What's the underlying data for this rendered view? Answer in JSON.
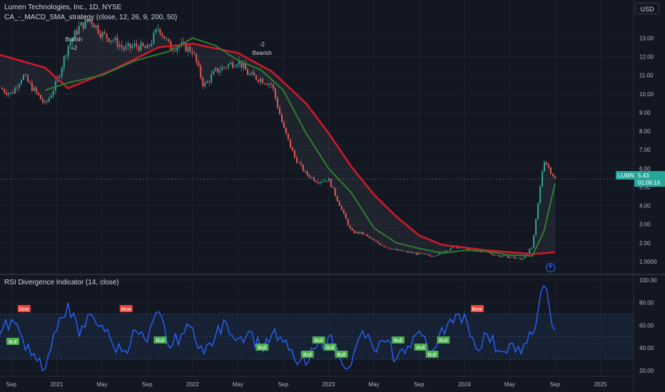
{
  "header": {
    "symbol_title": "Lumen Technologies, Inc., 1D, NYSE",
    "strategy_title": "CA_-_MACD_SMA_strategy (close, 12, 26, 9, 200, 50)",
    "currency": "USD"
  },
  "price_tag": {
    "ticker": "LUMN",
    "price": "5.43",
    "countdown": "01:06:16"
  },
  "rsi_panel": {
    "title": "RSI Divergence Indicator (14, close)"
  },
  "colors": {
    "background": "#131722",
    "grid": "#1e222d",
    "candle_up": "#26a69a",
    "candle_down": "#ef5350",
    "sma_long": "#d7182a",
    "sma_short": "#2e7d32",
    "rsi_line": "#2962ff",
    "rsi_band": "#1a2a44",
    "price_tag": "#26a69a",
    "bull_label": "#4caf50",
    "bear_label": "#f44336"
  },
  "chart_data": [
    {
      "type": "line",
      "title": "Lumen Technologies, Inc., 1D, NYSE",
      "x_ticks": [
        "Sep",
        "2021",
        "May",
        "Sep",
        "2022",
        "May",
        "Sep",
        "2023",
        "May",
        "Sep",
        "2024",
        "May",
        "Sep",
        "2025"
      ],
      "y_ticks": [
        "13.00",
        "12.00",
        "11.00",
        "10.00",
        "9.00",
        "8.00",
        "7.00",
        "6.00",
        "5.00",
        "4.00",
        "3.00",
        "2.00",
        "1.0000"
      ],
      "ylim": [
        0.5,
        14.2
      ],
      "scale": "linear",
      "series": [
        {
          "name": "",
          "role": "price",
          "x": [
            "2020-08",
            "2020-09",
            "2020-10",
            "2020-11",
            "2020-12",
            "2021-01",
            "2021-02",
            "2021-03",
            "2021-04",
            "2021-05",
            "2021-06",
            "2021-07",
            "2021-08",
            "2021-09",
            "2021-10",
            "2021-11",
            "2021-12",
            "2022-01",
            "2022-02",
            "2022-03",
            "2022-04",
            "2022-05",
            "2022-06",
            "2022-07",
            "2022-08",
            "2022-09",
            "2022-10",
            "2022-11",
            "2022-12",
            "2023-01",
            "2023-02",
            "2023-03",
            "2023-04",
            "2023-05",
            "2023-06",
            "2023-07",
            "2023-08",
            "2023-09",
            "2023-10",
            "2023-11",
            "2023-12",
            "2024-01",
            "2024-02",
            "2024-03",
            "2024-04",
            "2024-05",
            "2024-06",
            "2024-07",
            "2024-08",
            "2024-09"
          ],
          "values": [
            10.3,
            10.0,
            11.0,
            10.2,
            9.4,
            10.6,
            12.6,
            13.6,
            14.0,
            13.2,
            12.9,
            12.4,
            12.6,
            12.4,
            13.6,
            12.5,
            12.6,
            12.3,
            10.4,
            11.2,
            11.5,
            11.8,
            11.0,
            10.8,
            10.5,
            8.2,
            6.6,
            5.7,
            5.3,
            5.4,
            4.0,
            2.6,
            2.5,
            2.1,
            1.8,
            1.6,
            1.5,
            1.4,
            1.3,
            1.5,
            1.8,
            1.7,
            1.6,
            1.5,
            1.3,
            1.25,
            1.1,
            1.8,
            6.5,
            5.43
          ]
        },
        {
          "name": "",
          "role": "sma_long",
          "x": [
            "2020-08",
            "2020-12",
            "2021-02",
            "2021-06",
            "2021-10",
            "2022-01",
            "2022-05",
            "2022-08",
            "2022-11",
            "2023-01",
            "2023-03",
            "2023-05",
            "2023-07",
            "2023-09",
            "2023-11",
            "2024-01",
            "2024-03",
            "2024-05",
            "2024-07",
            "2024-09"
          ],
          "values": [
            12.1,
            11.4,
            10.3,
            11.3,
            12.5,
            12.7,
            12.2,
            11.2,
            9.5,
            7.9,
            6.1,
            4.6,
            3.4,
            2.4,
            1.9,
            1.75,
            1.6,
            1.5,
            1.4,
            1.5
          ]
        },
        {
          "name": "",
          "role": "sma_short",
          "x": [
            "2020-12",
            "2021-02",
            "2021-05",
            "2021-08",
            "2021-11",
            "2022-01",
            "2022-03",
            "2022-05",
            "2022-07",
            "2022-09",
            "2022-11",
            "2023-01",
            "2023-03",
            "2023-05",
            "2023-07",
            "2023-09",
            "2023-11",
            "2024-01",
            "2024-03",
            "2024-05",
            "2024-07",
            "2024-08",
            "2024-09"
          ],
          "values": [
            10.2,
            10.6,
            11.0,
            11.8,
            12.3,
            13.0,
            12.6,
            11.8,
            11.3,
            10.2,
            7.9,
            6.0,
            4.7,
            2.8,
            2.0,
            1.7,
            1.45,
            1.6,
            1.55,
            1.35,
            1.3,
            2.6,
            5.2
          ]
        }
      ],
      "annotations": [
        {
          "text": "Bullish",
          "x": "2021-01"
        },
        {
          "text": "+2",
          "x": "2021-01"
        },
        {
          "text": "-2",
          "x": "2022-06"
        },
        {
          "text": "Bearish",
          "x": "2022-06"
        }
      ]
    },
    {
      "type": "line",
      "title": "RSI Divergence Indicator (14, close)",
      "y_ticks": [
        "100.00",
        "80.00",
        "60.00",
        "40.00",
        "20.00"
      ],
      "ylim": [
        15,
        103
      ],
      "band": [
        30,
        70
      ],
      "series": [
        {
          "name": "",
          "x": [
            "2020-08",
            "2020-09",
            "2020-10",
            "2020-11",
            "2020-12",
            "2021-01",
            "2021-02",
            "2021-03",
            "2021-04",
            "2021-05",
            "2021-06",
            "2021-07",
            "2021-08",
            "2021-09",
            "2021-10",
            "2021-11",
            "2021-12",
            "2022-01",
            "2022-02",
            "2022-03",
            "2022-04",
            "2022-05",
            "2022-06",
            "2022-07",
            "2022-08",
            "2022-09",
            "2022-10",
            "2022-11",
            "2022-12",
            "2023-01",
            "2023-02",
            "2023-03",
            "2023-04",
            "2023-05",
            "2023-06",
            "2023-07",
            "2023-08",
            "2023-09",
            "2023-10",
            "2023-11",
            "2023-12",
            "2024-01",
            "2024-02",
            "2024-03",
            "2024-04",
            "2024-05",
            "2024-06",
            "2024-07",
            "2024-08",
            "2024-09"
          ],
          "values": [
            52,
            65,
            48,
            35,
            22,
            55,
            80,
            50,
            70,
            60,
            42,
            38,
            55,
            45,
            72,
            40,
            52,
            58,
            35,
            50,
            62,
            48,
            55,
            40,
            52,
            45,
            30,
            25,
            42,
            50,
            32,
            25,
            55,
            38,
            45,
            30,
            42,
            55,
            35,
            58,
            62,
            70,
            40,
            52,
            38,
            44,
            35,
            52,
            95,
            56
          ]
        }
      ],
      "labels": [
        {
          "text": "Bear",
          "x": "2020-09"
        },
        {
          "text": "Bull",
          "x": "2020-08"
        },
        {
          "text": "Bear",
          "x": "2021-06"
        },
        {
          "text": "Bull",
          "x": "2021-09"
        },
        {
          "text": "Bull",
          "x": "2022-06"
        },
        {
          "text": "Bull",
          "x": "2022-10"
        },
        {
          "text": "Bull",
          "x": "2022-11"
        },
        {
          "text": "Bull",
          "x": "2022-12"
        },
        {
          "text": "Bull",
          "x": "2023-01"
        },
        {
          "text": "Bull",
          "x": "2023-06"
        },
        {
          "text": "Bull",
          "x": "2023-08"
        },
        {
          "text": "Bull",
          "x": "2023-09"
        },
        {
          "text": "Bull",
          "x": "2023-10"
        },
        {
          "text": "Bear",
          "x": "2024-01"
        }
      ]
    }
  ]
}
